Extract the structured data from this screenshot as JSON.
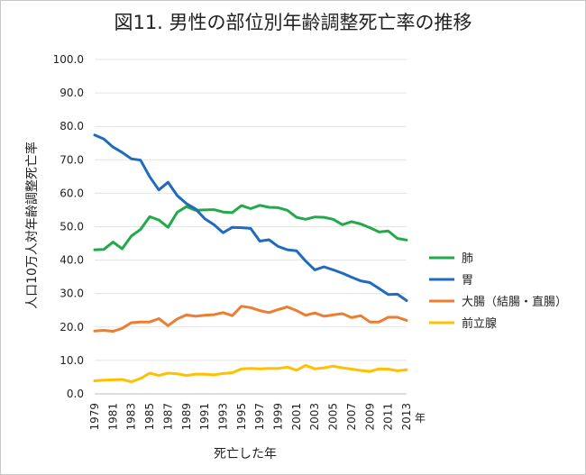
{
  "chart_data": {
    "type": "line",
    "title": "図11. 男性の部位別年齢調整死亡率の推移",
    "ylabel": "人口10万人対年齢調整死亡率",
    "xlabel": "死亡した年",
    "xunit": "年",
    "ylim": [
      0,
      100
    ],
    "ytick_step": 10,
    "yticks": [
      "0.0",
      "10.0",
      "20.0",
      "30.0",
      "40.0",
      "50.0",
      "60.0",
      "70.0",
      "80.0",
      "90.0",
      "100.0"
    ],
    "xtick_labels": [
      "1979",
      "1981",
      "1983",
      "1985",
      "1987",
      "1989",
      "1991",
      "1993",
      "1995",
      "1997",
      "1999",
      "2001",
      "2003",
      "2005",
      "2007",
      "2009",
      "2011",
      "2013"
    ],
    "x": [
      1979,
      1980,
      1981,
      1982,
      1983,
      1984,
      1985,
      1986,
      1987,
      1988,
      1989,
      1990,
      1991,
      1992,
      1993,
      1994,
      1995,
      1996,
      1997,
      1998,
      1999,
      2000,
      2001,
      2002,
      2003,
      2004,
      2005,
      2006,
      2007,
      2008,
      2009,
      2010,
      2011,
      2012,
      2013
    ],
    "grid": true,
    "legend_position": "right",
    "series": [
      {
        "name": "肺",
        "color": "#22aa4a",
        "values": [
          43.1,
          43.2,
          45.4,
          43.4,
          47.2,
          49.2,
          53.0,
          52.0,
          49.8,
          54.3,
          56.0,
          54.9,
          55.0,
          55.1,
          54.4,
          54.2,
          56.3,
          55.4,
          56.4,
          55.8,
          55.7,
          54.9,
          52.8,
          52.2,
          52.9,
          52.8,
          52.2,
          50.6,
          51.5,
          50.8,
          49.7,
          48.4,
          48.7,
          46.5,
          46.0
        ]
      },
      {
        "name": "胃",
        "color": "#1f6bbf",
        "values": [
          77.4,
          76.2,
          73.8,
          72.2,
          70.3,
          69.9,
          64.9,
          61.0,
          63.3,
          59.3,
          56.9,
          55.3,
          52.4,
          50.6,
          48.2,
          49.8,
          49.7,
          49.5,
          45.7,
          46.1,
          44.1,
          43.1,
          42.8,
          39.7,
          37.1,
          38.0,
          37.1,
          36.1,
          34.9,
          33.8,
          33.3,
          31.5,
          29.7,
          29.8,
          27.9
        ]
      },
      {
        "name": "大腸（結腸・直腸）",
        "color": "#ed7d31",
        "values": [
          18.8,
          19.0,
          18.7,
          19.6,
          21.3,
          21.5,
          21.5,
          22.5,
          20.4,
          22.4,
          23.6,
          23.2,
          23.5,
          23.7,
          24.3,
          23.4,
          26.2,
          25.8,
          24.9,
          24.3,
          25.2,
          26.0,
          24.9,
          23.5,
          24.2,
          23.2,
          23.6,
          24.0,
          22.8,
          23.4,
          21.5,
          21.5,
          22.9,
          22.9,
          22.0
        ]
      },
      {
        "name": "前立腺",
        "color": "#ffc000",
        "values": [
          3.9,
          4.1,
          4.2,
          4.3,
          3.6,
          4.6,
          6.2,
          5.5,
          6.2,
          6.0,
          5.5,
          5.9,
          5.9,
          5.7,
          6.1,
          6.3,
          7.5,
          7.6,
          7.5,
          7.6,
          7.6,
          8.0,
          7.1,
          8.5,
          7.5,
          7.8,
          8.3,
          7.8,
          7.4,
          7.0,
          6.7,
          7.5,
          7.4,
          6.9,
          7.2
        ]
      }
    ]
  }
}
